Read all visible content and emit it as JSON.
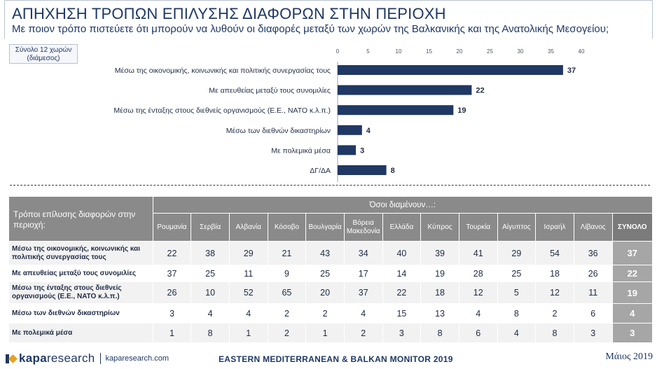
{
  "header": {
    "title": "ΑΠΗΧΗΣΗ ΤΡΟΠΩΝ ΕΠΙΛΥΣΗΣ ΔΙΑΦΟΡΩΝ ΣΤΗΝ ΠΕΡΙΟΧΗ",
    "subtitle": "Με ποιον τρόπο πιστεύετε ότι μπορούν να λυθούν οι διαφορές μεταξύ των χωρών της Βαλκανικής και της Ανατολικής Μεσογείου;"
  },
  "base_note": {
    "line1": "Σύνολο 12 χωρών",
    "line2": "(διάμεσος)"
  },
  "chart_data": {
    "type": "bar",
    "orientation": "horizontal",
    "categories": [
      "Μέσω της οικονομικής, κοινωνικής και πολιτικής συνεργασίας τους",
      "Με απευθείας μεταξύ τους συνομιλίες",
      "Μέσω της ένταξης στους διεθνείς οργανισμούς (Ε.Ε., ΝΑΤΟ κ.λ.π.)",
      "Μέσω των διεθνών δικαστηρίων",
      "Με πολεμικά μέσα",
      "ΔΓ/ΔΑ"
    ],
    "values": [
      37,
      22,
      19,
      4,
      3,
      8
    ],
    "xlim": [
      0,
      40
    ],
    "ticks": [
      0,
      5,
      10,
      15,
      20,
      25,
      30,
      35,
      40
    ],
    "axis_position": "top",
    "grid": false,
    "bar_color": "#1f3864"
  },
  "table": {
    "row_header": "Τρόποι επίλυσης διαφορών στην περιοχή:",
    "group_header": "Όσοι διαμένουν…:",
    "columns": [
      "Ρουμανία",
      "Σερβία",
      "Αλβανία",
      "Κόσοβο",
      "Βουλγαρία",
      "Βόρεια Μακεδονία",
      "Ελλάδα",
      "Κύπρος",
      "Τουρκία",
      "Αίγυπτος",
      "Ισραήλ",
      "Λίβανος"
    ],
    "total_header": "ΣΥΝΟΛΟ",
    "rows": [
      {
        "label": "Μέσω της οικονομικής, κοινωνικής και πολιτικής συνεργασίας τους",
        "values": [
          "22",
          "38",
          "29",
          "21",
          "43",
          "34",
          "40",
          "39",
          "41",
          "29",
          "54",
          "36"
        ],
        "total": "37"
      },
      {
        "label": "Με απευθείας μεταξύ τους συνομιλίες",
        "values": [
          "37",
          "25",
          "11",
          "9",
          "25",
          "17",
          "14",
          "19",
          "28",
          "25",
          "18",
          "26"
        ],
        "total": "22"
      },
      {
        "label": "Μέσω της ένταξης στους διεθνείς οργανισμούς (Ε.Ε., ΝΑΤΟ κ.λ.π.)",
        "values": [
          "26",
          "10",
          "52",
          "65",
          "20",
          "37",
          "22",
          "18",
          "12",
          "5",
          "12",
          "11"
        ],
        "total": "19"
      },
      {
        "label": "Μέσω των διεθνών δικαστηρίων",
        "values": [
          "3",
          "4",
          "4",
          "2",
          "2",
          "4",
          "15",
          "13",
          "4",
          "8",
          "2",
          "6"
        ],
        "total": "4"
      },
      {
        "label": "Με πολεμικά μέσα",
        "values": [
          "1",
          "8",
          "1",
          "2",
          "1",
          "2",
          "3",
          "8",
          "6",
          "4",
          "8",
          "3"
        ],
        "total": "3"
      }
    ]
  },
  "footer": {
    "brand_prefix": "kapa",
    "brand_suffix": "research",
    "url": "kaparesearch.com",
    "monitor": "EASTERN MEDITERRANEAN & BALKAN MONITOR 2019",
    "date": "Μάιος 2019",
    "logo_colors": {
      "primary": "#1f3864",
      "accent": "#e6a020"
    }
  }
}
